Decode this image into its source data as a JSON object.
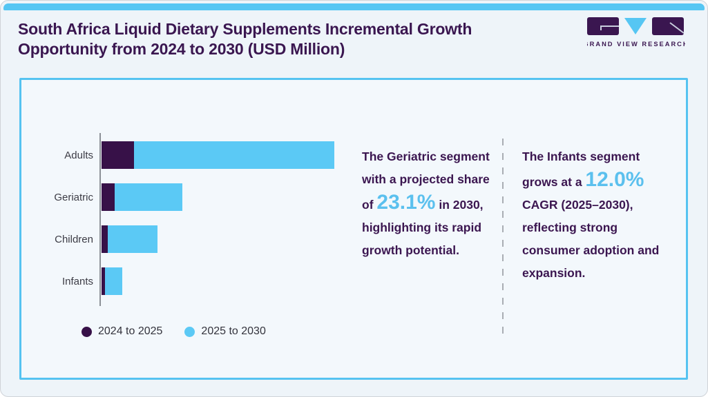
{
  "page": {
    "title": "South Africa Liquid Dietary Supplements Incremental Growth Opportunity from 2024 to 2030 (USD Million)"
  },
  "logo": {
    "text": "GRAND VIEW RESEARCH"
  },
  "chart_data": {
    "type": "bar",
    "orientation": "horizontal",
    "stacked": true,
    "title": "South Africa Liquid Dietary Supplements Incremental Growth Opportunity from 2024 to 2030 (USD Million)",
    "unit": "USD Million",
    "axis_tick_labels_shown": false,
    "values_note": "axis is unlabeled; values are relative magnitudes estimated from bar lengths (px)",
    "categories": [
      "Adults",
      "Geriatric",
      "Children",
      "Infants"
    ],
    "series": [
      {
        "name": "2024 to 2025",
        "color": "#371148",
        "values": [
          47,
          19,
          9,
          5
        ]
      },
      {
        "name": "2025 to 2030",
        "color": "#5bc9f5",
        "values": [
          290,
          98,
          72,
          25
        ]
      }
    ],
    "legend_position": "bottom-left"
  },
  "insights": [
    {
      "prefix": "The Geriatric segment with a projected share of ",
      "highlight": "23.1%",
      "suffix": " in 2030, highlighting its rapid growth potential."
    },
    {
      "prefix": "The Infants segment grows at a ",
      "highlight": "12.0%",
      "suffix": " CAGR (2025–2030), reflecting strong consumer adoption and expansion."
    }
  ],
  "colors": {
    "accent_blue": "#56c6f3",
    "brand_purple": "#3a1650",
    "highlight_text_blue": "#5bc0ee",
    "panel_border": "#55c3f1",
    "background": "#eef4f9",
    "panel_background": "#f3f8fc"
  }
}
